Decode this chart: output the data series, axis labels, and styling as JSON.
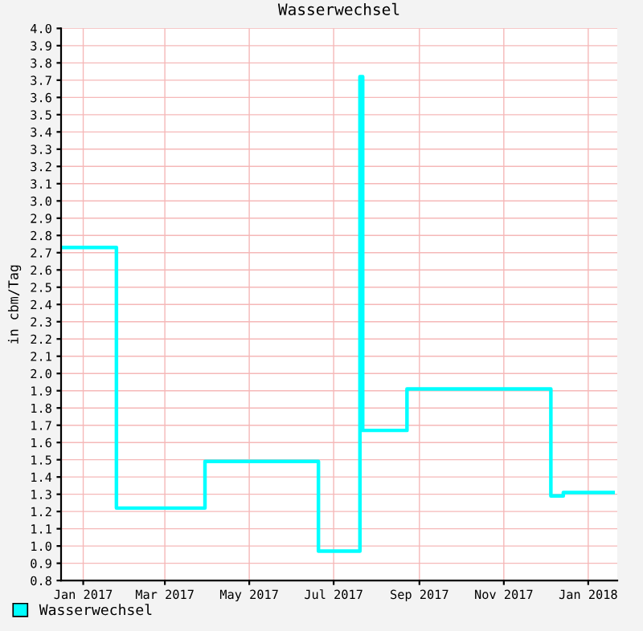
{
  "chart_data": {
    "type": "step",
    "title": "Wasserwechsel",
    "ylabel": "in cbm/Tag",
    "x": [
      "2016-12-16",
      "2017-01-25",
      "2017-03-30",
      "2017-06-20",
      "2017-07-20",
      "2017-07-22",
      "2017-08-23",
      "2017-12-05",
      "2017-12-14",
      "2018-01-19"
    ],
    "series": [
      {
        "name": "Wasserwechsel",
        "color": "#00ffff",
        "values": [
          2.73,
          1.22,
          1.49,
          0.97,
          3.72,
          1.67,
          1.91,
          1.29,
          1.31,
          1.31
        ]
      }
    ],
    "xlim": [
      "2016-12-16",
      "2018-01-22"
    ],
    "xticks": [
      {
        "value": "2017-01-01",
        "label": "Jan 2017"
      },
      {
        "value": "2017-03-01",
        "label": "Mar 2017"
      },
      {
        "value": "2017-05-01",
        "label": "May 2017"
      },
      {
        "value": "2017-07-01",
        "label": "Jul 2017"
      },
      {
        "value": "2017-09-01",
        "label": "Sep 2017"
      },
      {
        "value": "2017-11-01",
        "label": "Nov 2017"
      },
      {
        "value": "2018-01-01",
        "label": "Jan 2018"
      }
    ],
    "ylim": [
      0.8,
      4.0
    ],
    "yticks": [
      0.8,
      0.9,
      {
        "value": 1,
        "label": "1.0"
      },
      1.1,
      1.2,
      1.3,
      1.4,
      1.5,
      1.6,
      1.7,
      1.8,
      1.9,
      {
        "value": 2,
        "label": "2.0"
      },
      2.1,
      2.2,
      2.3,
      2.4,
      2.5,
      2.6,
      2.7,
      2.8,
      2.9,
      {
        "value": 3,
        "label": "3.0"
      },
      3.1,
      3.2,
      3.3,
      3.4,
      3.5,
      3.6,
      3.7,
      3.8,
      3.9,
      {
        "value": 4,
        "label": "4.0"
      }
    ],
    "grid": true,
    "legend": "bottom left"
  }
}
